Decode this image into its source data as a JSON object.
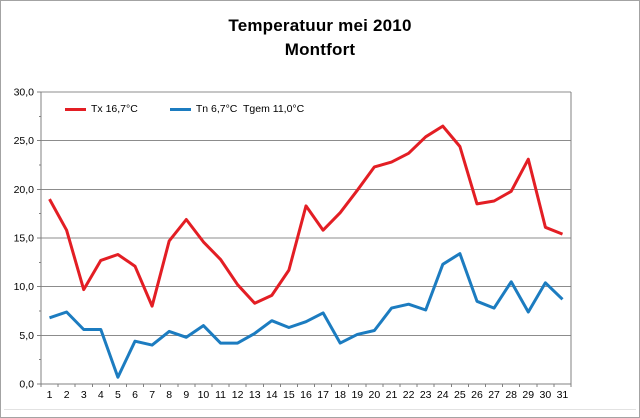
{
  "title": {
    "line1": "Temperatuur mei 2010",
    "line2": "Montfort"
  },
  "legend": {
    "tx_label": "Tx 16,7°C",
    "tn_label": "Tn 6,7°C  Tgem 11,0°C"
  },
  "colors": {
    "tx": "#e31e24",
    "tn": "#1c7cc0",
    "grid": "#8c8c8c",
    "axis": "#808080",
    "text": "#000000"
  },
  "chart_data": {
    "type": "line",
    "title": "Temperatuur mei 2010 Montfort",
    "xlabel": "",
    "ylabel": "",
    "x": [
      1,
      2,
      3,
      4,
      5,
      6,
      7,
      8,
      9,
      10,
      11,
      12,
      13,
      14,
      15,
      16,
      17,
      18,
      19,
      20,
      21,
      22,
      23,
      24,
      25,
      26,
      27,
      28,
      29,
      30,
      31
    ],
    "series": [
      {
        "name": "Tx 16,7°C",
        "color": "#e31e24",
        "values": [
          19.0,
          15.8,
          9.7,
          12.7,
          13.3,
          12.1,
          8.0,
          14.7,
          16.9,
          14.6,
          12.8,
          10.2,
          8.3,
          9.1,
          11.7,
          18.3,
          15.8,
          17.6,
          19.9,
          22.3,
          22.8,
          23.7,
          25.4,
          26.5,
          24.4,
          18.5,
          18.8,
          19.8,
          23.1,
          16.1,
          15.4
        ]
      },
      {
        "name": "Tn 6,7°C",
        "color": "#1c7cc0",
        "values": [
          6.8,
          7.4,
          5.6,
          5.6,
          0.7,
          4.4,
          4.0,
          5.4,
          4.8,
          6.0,
          4.2,
          4.2,
          5.2,
          6.5,
          5.8,
          6.4,
          7.3,
          4.2,
          5.1,
          5.5,
          7.8,
          8.2,
          7.6,
          12.3,
          13.4,
          8.5,
          7.8,
          10.5,
          7.4,
          10.4,
          8.7
        ]
      }
    ],
    "ylim": [
      0,
      30
    ],
    "ytick_step": 5,
    "ytick_labels": [
      "0,0",
      "5,0",
      "10,0",
      "15,0",
      "20,0",
      "25,0",
      "30,0"
    ],
    "yminor_step": 2.5,
    "grid": true,
    "legend_position": "top-left-inside"
  }
}
